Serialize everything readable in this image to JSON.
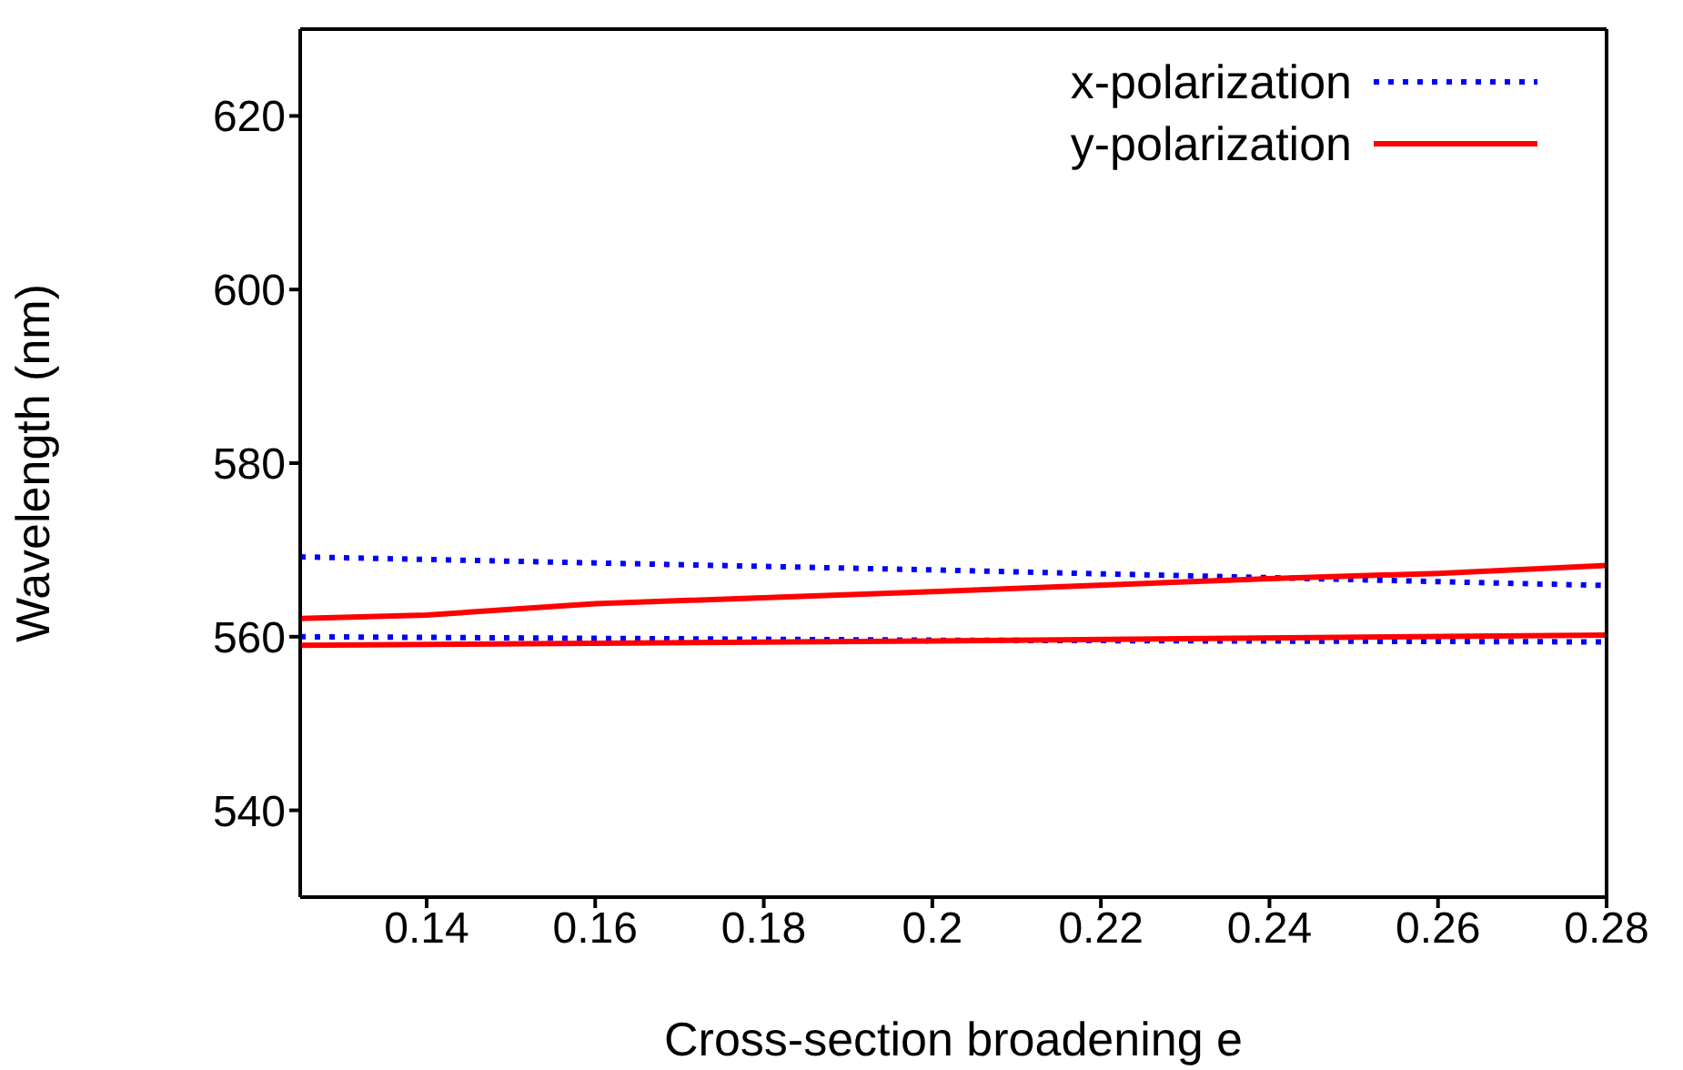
{
  "chart_data": {
    "type": "line",
    "xlabel": "Cross-section broadening e",
    "ylabel": "Wavelength (nm)",
    "xlim": [
      0.125,
      0.28
    ],
    "xticks": [
      0.14,
      0.16,
      0.18,
      0.2,
      0.22,
      0.24,
      0.26,
      0.28
    ],
    "ylim": [
      530,
      630
    ],
    "yticks": [
      540,
      560,
      580,
      600,
      620
    ],
    "grid": false,
    "legend": "top right",
    "marker": "none",
    "series": [
      {
        "name": "x-polarization",
        "color": "#0000ff",
        "line_style": "dotted",
        "x": [
          0.125,
          0.16,
          0.2,
          0.24,
          0.28
        ],
        "values": [
          569.2,
          568.5,
          567.7,
          566.8,
          565.9
        ]
      },
      {
        "name": "y-polarization",
        "color": "#ff0000",
        "line_style": "solid",
        "x": [
          0.125,
          0.14,
          0.16,
          0.2,
          0.24,
          0.26,
          0.28
        ],
        "values": [
          562.1,
          562.5,
          563.8,
          565.2,
          566.7,
          567.3,
          568.2
        ]
      },
      {
        "color": "#0000ff",
        "line_style": "dotted",
        "x": [
          0.125,
          0.2,
          0.28
        ],
        "values": [
          560.0,
          559.6,
          559.4
        ]
      },
      {
        "color": "#ff0000",
        "line_style": "solid",
        "x": [
          0.125,
          0.2,
          0.28
        ],
        "values": [
          559.0,
          559.5,
          560.2
        ]
      }
    ]
  }
}
